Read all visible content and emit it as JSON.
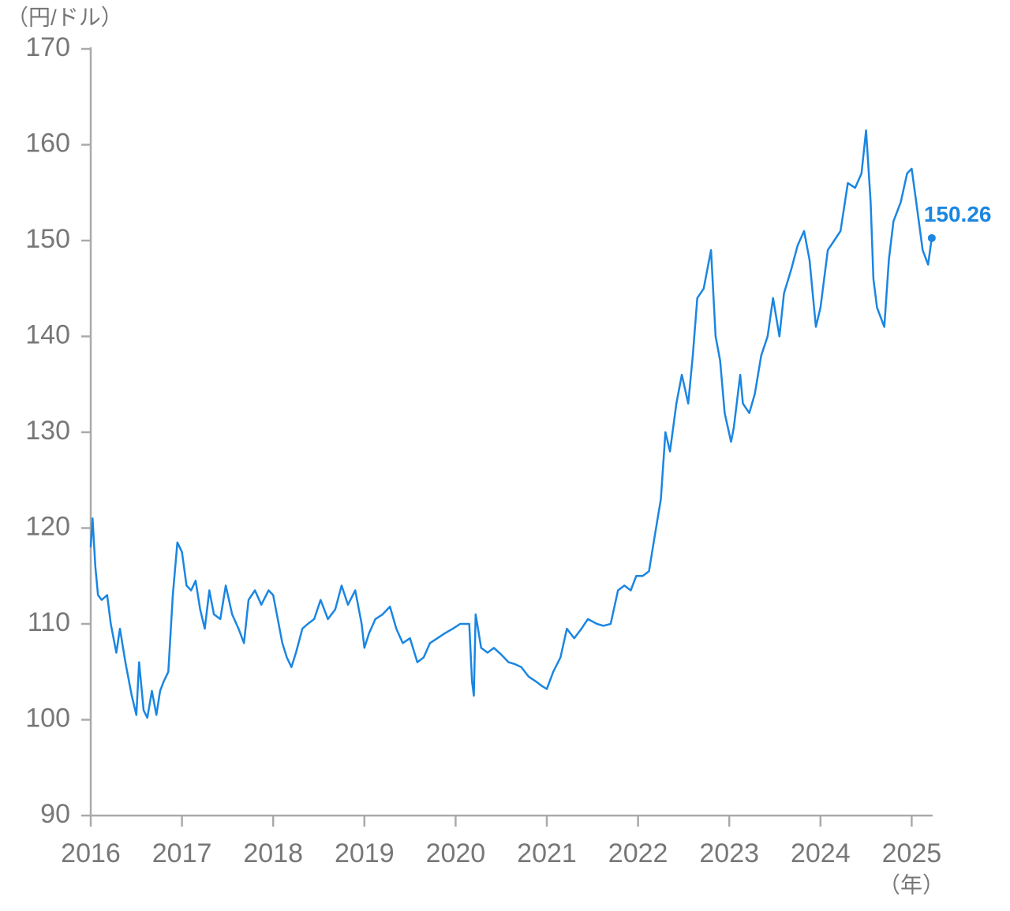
{
  "chart_data": {
    "type": "line",
    "y_label": "（円/ドル）",
    "x_label": "（年）",
    "color": "#1a86e2",
    "xlim": [
      2016,
      2025.23
    ],
    "xticks": [
      2016,
      2017,
      2018,
      2019,
      2020,
      2021,
      2022,
      2023,
      2024,
      2025
    ],
    "ylim": [
      90,
      170
    ],
    "yticks": [
      90,
      100,
      110,
      120,
      130,
      140,
      150,
      160,
      170
    ],
    "x": [
      2016.0,
      2016.02,
      2016.05,
      2016.08,
      2016.12,
      2016.18,
      2016.22,
      2016.28,
      2016.32,
      2016.38,
      2016.45,
      2016.5,
      2016.53,
      2016.58,
      2016.62,
      2016.67,
      2016.72,
      2016.76,
      2016.8,
      2016.85,
      2016.9,
      2016.95,
      2017.0,
      2017.05,
      2017.1,
      2017.15,
      2017.2,
      2017.25,
      2017.3,
      2017.35,
      2017.42,
      2017.48,
      2017.55,
      2017.62,
      2017.68,
      2017.73,
      2017.8,
      2017.87,
      2017.95,
      2018.0,
      2018.05,
      2018.1,
      2018.15,
      2018.2,
      2018.25,
      2018.32,
      2018.38,
      2018.45,
      2018.52,
      2018.6,
      2018.68,
      2018.75,
      2018.82,
      2018.9,
      2018.97,
      2019.0,
      2019.05,
      2019.12,
      2019.2,
      2019.28,
      2019.35,
      2019.42,
      2019.5,
      2019.58,
      2019.65,
      2019.72,
      2019.8,
      2019.88,
      2019.97,
      2020.05,
      2020.15,
      2020.18,
      2020.2,
      2020.22,
      2020.28,
      2020.35,
      2020.42,
      2020.5,
      2020.58,
      2020.65,
      2020.72,
      2020.8,
      2020.88,
      2020.95,
      2021.0,
      2021.07,
      2021.15,
      2021.22,
      2021.3,
      2021.38,
      2021.45,
      2021.55,
      2021.62,
      2021.7,
      2021.78,
      2021.85,
      2021.92,
      2021.98,
      2022.05,
      2022.12,
      2022.18,
      2022.25,
      2022.3,
      2022.35,
      2022.42,
      2022.48,
      2022.55,
      2022.6,
      2022.65,
      2022.72,
      2022.8,
      2022.85,
      2022.9,
      2022.95,
      2023.02,
      2023.05,
      2023.12,
      2023.15,
      2023.22,
      2023.28,
      2023.35,
      2023.42,
      2023.48,
      2023.55,
      2023.6,
      2023.68,
      2023.75,
      2023.82,
      2023.88,
      2023.95,
      2024.0,
      2024.08,
      2024.15,
      2024.22,
      2024.3,
      2024.38,
      2024.45,
      2024.5,
      2024.55,
      2024.58,
      2024.62,
      2024.7,
      2024.75,
      2024.8,
      2024.88,
      2024.95,
      2025.0,
      2025.05,
      2025.12,
      2025.18,
      2025.22
    ],
    "values": [
      118,
      121,
      116,
      113,
      112.5,
      113,
      110,
      107,
      109.5,
      106,
      102.5,
      100.5,
      106,
      101,
      100.2,
      103,
      100.5,
      103,
      104,
      105,
      113,
      118.5,
      117.5,
      114,
      113.5,
      114.5,
      111.5,
      109.5,
      113.5,
      111,
      110.5,
      114,
      111,
      109.5,
      108,
      112.5,
      113.5,
      112,
      113.5,
      113,
      110.5,
      108,
      106.5,
      105.5,
      107,
      109.5,
      110,
      110.5,
      112.5,
      110.5,
      111.5,
      114,
      112,
      113.5,
      110,
      107.5,
      109,
      110.5,
      111,
      111.8,
      109.5,
      108,
      108.5,
      106,
      106.5,
      108,
      108.5,
      109,
      109.5,
      110,
      110,
      104,
      102.5,
      111,
      107.5,
      107,
      107.5,
      106.8,
      106,
      105.8,
      105.5,
      104.5,
      104,
      103.5,
      103.2,
      105,
      106.5,
      109.5,
      108.5,
      109.5,
      110.5,
      110,
      109.8,
      110,
      113.5,
      114,
      113.5,
      115,
      115,
      115.5,
      119,
      123,
      130,
      128,
      133,
      136,
      133,
      138,
      144,
      145,
      149,
      140,
      137.5,
      132,
      129,
      130.5,
      136,
      133,
      132,
      134,
      138,
      140,
      144,
      140,
      144.5,
      147,
      149.5,
      151,
      148,
      141,
      143,
      149,
      150,
      151,
      156,
      155.5,
      157,
      161.5,
      154,
      146,
      143,
      141,
      148,
      152,
      154,
      157,
      157.5,
      154,
      149,
      147.5,
      150.26
    ]
  }
}
